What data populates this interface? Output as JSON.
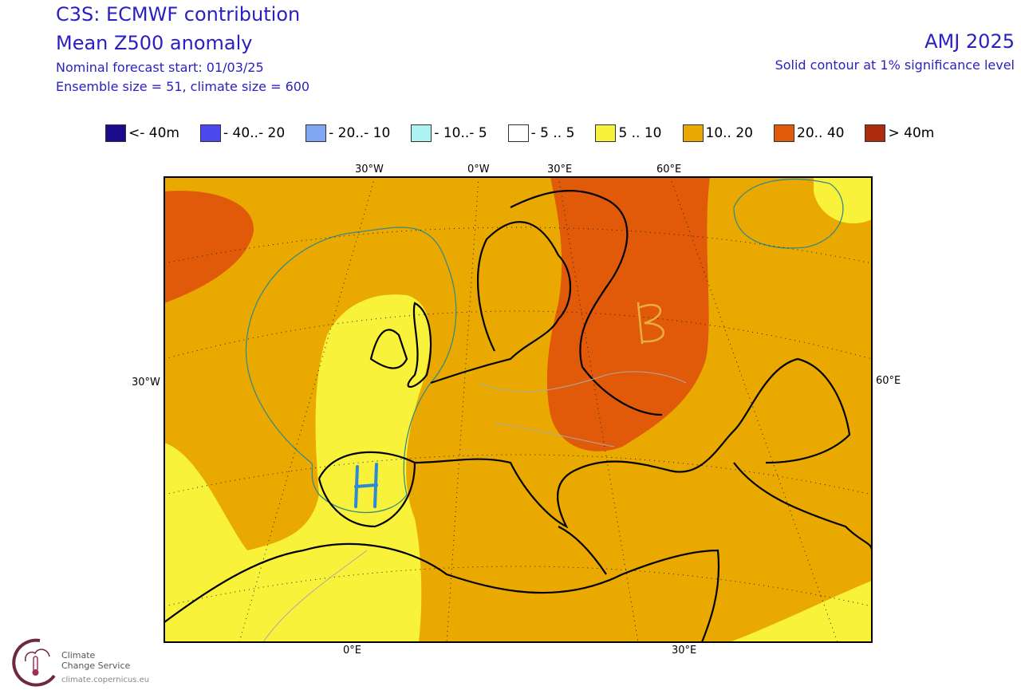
{
  "header": {
    "title": "C3S: ECMWF contribution",
    "subtitle": "Mean Z500 anomaly",
    "forecast_start": "Nominal forecast start: 01/03/25",
    "ensemble": "Ensemble size = 51, climate size = 600",
    "period": "AMJ 2025",
    "significance": "Solid contour at 1% significance level"
  },
  "legend": [
    {
      "label": "<- 40m",
      "color": "#1a0a8c"
    },
    {
      "label": "- 40..- 20",
      "color": "#4a4af0"
    },
    {
      "label": "- 20..- 10",
      "color": "#7fa6f0"
    },
    {
      "label": "- 10..- 5",
      "color": "#aef2f2"
    },
    {
      "label": "- 5 .. 5",
      "color": "#ffffff"
    },
    {
      "label": "5 .. 10",
      "color": "#f8f23a"
    },
    {
      "label": "10.. 20",
      "color": "#e9a900"
    },
    {
      "label": "20.. 40",
      "color": "#e05a0a"
    },
    {
      "label": "> 40m",
      "color": "#b02a10"
    }
  ],
  "axis_labels": {
    "top": [
      "30°W",
      "0°W",
      "30°E",
      "60°E"
    ],
    "left": "30°W",
    "right": "60°E",
    "bottom": [
      "0°E",
      "30°E"
    ]
  },
  "annotations": {
    "high": "H",
    "blocking": "B"
  },
  "logo": {
    "name_line1": "Climate",
    "name_line2": "Change Service",
    "url": "climate.copernicus.eu"
  }
}
